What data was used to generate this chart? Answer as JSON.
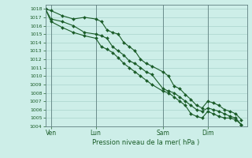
{
  "bg_color": "#cdeee8",
  "grid_color": "#aad4cc",
  "line_color": "#1a5c28",
  "marker_color": "#1a5c28",
  "title": "Pression niveau de la mer( hPa )",
  "ylim": [
    1004,
    1018.5
  ],
  "yticks": [
    1004,
    1005,
    1006,
    1007,
    1008,
    1009,
    1010,
    1011,
    1012,
    1013,
    1014,
    1015,
    1016,
    1017,
    1018
  ],
  "xlim": [
    0,
    36
  ],
  "xtick_labels": [
    "Ven",
    "Lun",
    "Sam",
    "Dim"
  ],
  "xtick_positions": [
    1,
    9,
    21,
    29
  ],
  "vline_positions": [
    1,
    9,
    21,
    29
  ],
  "x_upper": [
    0,
    1,
    3,
    5,
    7,
    9,
    10,
    11,
    12,
    13,
    14,
    15,
    16,
    17,
    18,
    19,
    21,
    22,
    23,
    24,
    25,
    26,
    27,
    28,
    29,
    30,
    31,
    32,
    33,
    34,
    35
  ],
  "y_upper": [
    1018.0,
    1017.8,
    1017.2,
    1016.8,
    1017.0,
    1016.8,
    1016.5,
    1015.5,
    1015.2,
    1015.0,
    1014.0,
    1013.5,
    1013.0,
    1012.0,
    1011.5,
    1011.2,
    1010.5,
    1010.0,
    1008.8,
    1008.5,
    1007.8,
    1007.2,
    1006.5,
    1006.2,
    1007.0,
    1006.8,
    1006.5,
    1006.0,
    1005.8,
    1005.5,
    1004.8
  ],
  "x_mid": [
    0,
    1,
    3,
    5,
    7,
    9,
    10,
    11,
    12,
    13,
    14,
    15,
    16,
    17,
    18,
    19,
    21,
    22,
    23,
    24,
    25,
    26,
    27,
    28,
    29,
    30,
    31,
    32,
    33,
    34,
    35
  ],
  "y_mid": [
    1018.0,
    1016.8,
    1016.5,
    1016.0,
    1015.2,
    1015.0,
    1014.8,
    1014.5,
    1013.5,
    1013.0,
    1012.5,
    1011.8,
    1011.5,
    1011.0,
    1010.5,
    1010.2,
    1008.5,
    1008.2,
    1008.0,
    1007.5,
    1007.0,
    1006.5,
    1006.0,
    1005.8,
    1006.2,
    1006.0,
    1005.8,
    1005.5,
    1005.2,
    1005.0,
    1004.2
  ],
  "x_lower": [
    0,
    1,
    3,
    5,
    7,
    9,
    10,
    11,
    12,
    13,
    14,
    15,
    16,
    17,
    18,
    19,
    21,
    22,
    23,
    24,
    25,
    26,
    27,
    28,
    29,
    30,
    31,
    32,
    33,
    34,
    35
  ],
  "y_lower": [
    1018.0,
    1016.5,
    1015.8,
    1015.2,
    1014.8,
    1014.5,
    1013.5,
    1013.2,
    1012.8,
    1012.2,
    1011.5,
    1011.0,
    1010.5,
    1010.0,
    1009.5,
    1009.0,
    1008.2,
    1008.0,
    1007.5,
    1007.0,
    1006.5,
    1005.5,
    1005.2,
    1005.0,
    1005.8,
    1005.5,
    1005.2,
    1005.0,
    1005.0,
    1004.8,
    1004.2
  ]
}
